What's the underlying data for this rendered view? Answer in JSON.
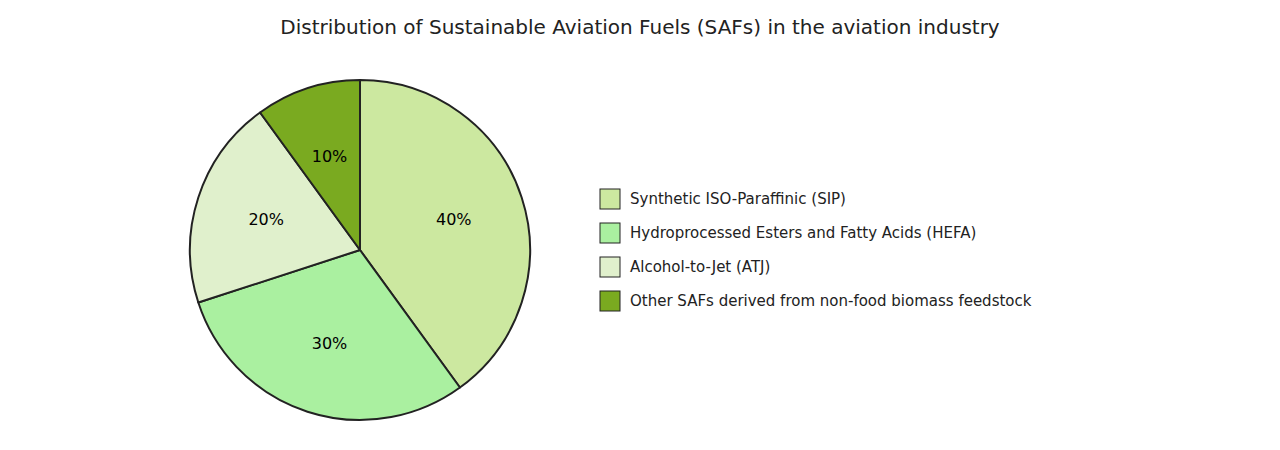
{
  "chart_data": {
    "type": "pie",
    "title": "Distribution of Sustainable Aviation Fuels (SAFs) in the aviation industry",
    "categories": [
      "Synthetic ISO-Paraffinic (SIP)",
      "Hydroprocessed Esters and Fatty Acids (HEFA)",
      "Alcohol-to-Jet (ATJ)",
      "Other SAFs derived from non-food biomass feedstock"
    ],
    "values": [
      40,
      30,
      20,
      10
    ],
    "value_labels": [
      "40%",
      "30%",
      "20%",
      "10%"
    ],
    "colors": [
      "#cce8a0",
      "#aaf0a0",
      "#e0f0cc",
      "#7aaa20"
    ],
    "data_labels": true,
    "legend": "right"
  }
}
